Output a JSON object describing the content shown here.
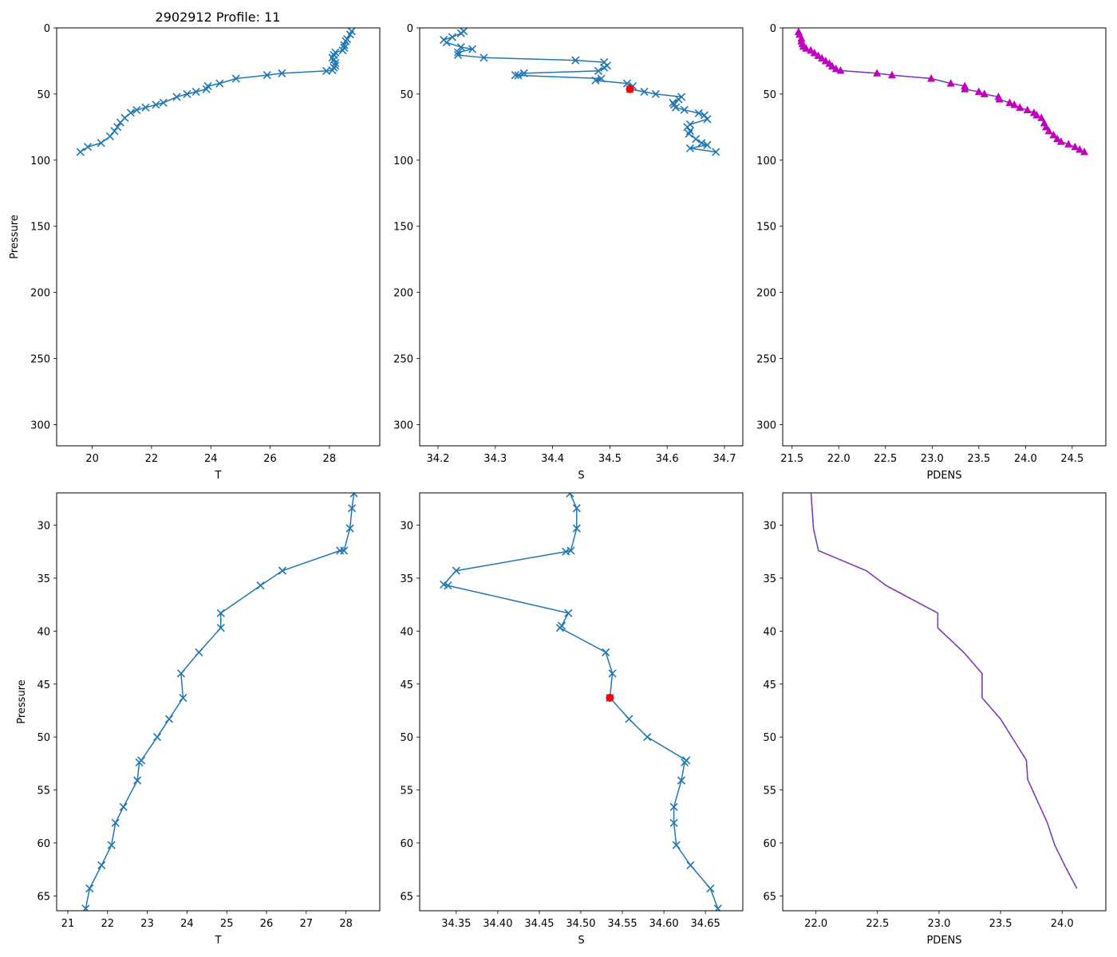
{
  "figure_title": "2902912 Profile: 11",
  "colors": {
    "line": "#1f77b4",
    "highlight": "#ff0000",
    "pdens": "#bf00bf",
    "pdens_dash": "#1f77b4"
  },
  "chart_data": [
    {
      "id": "top-T",
      "type": "line",
      "marker": "x",
      "title": "2902912 Profile: 11",
      "xlabel": "T",
      "ylabel": "Pressure",
      "y_inverted": true,
      "xlim": [
        18.8,
        29.7
      ],
      "ylim": [
        0,
        316
      ],
      "xticks": [
        20,
        22,
        24,
        26,
        28
      ],
      "yticks": [
        0,
        50,
        100,
        150,
        200,
        250,
        300
      ],
      "x": [
        28.75,
        28.7,
        28.6,
        28.55,
        28.5,
        28.5,
        28.45,
        28.2,
        28.15,
        28.1,
        28.15,
        28.2,
        28.2,
        28.15,
        28.1,
        27.9,
        26.4,
        25.9,
        24.85,
        24.3,
        23.9,
        23.85,
        23.5,
        23.2,
        22.85,
        22.4,
        22.15,
        21.8,
        21.5,
        21.3,
        21.1,
        20.95,
        20.85,
        20.75,
        20.6,
        20.3,
        19.85,
        19.6
      ],
      "y": [
        2.5,
        5,
        8.5,
        10,
        13,
        15,
        17,
        18.5,
        20.5,
        22.5,
        24,
        26.5,
        28.5,
        30,
        32,
        32.5,
        34.3,
        35.7,
        38.3,
        42,
        44,
        46.3,
        48.3,
        50,
        52.2,
        56.6,
        58.1,
        60.2,
        62.1,
        64.2,
        68,
        71.5,
        75,
        78,
        82,
        87,
        90,
        93.8
      ],
      "highlight": null
    },
    {
      "id": "top-S",
      "type": "line",
      "marker": "x",
      "title": "",
      "xlabel": "S",
      "ylabel": "",
      "y_inverted": true,
      "xlim": [
        34.168,
        34.732
      ],
      "ylim": [
        0,
        316
      ],
      "xticks": [
        34.2,
        34.3,
        34.4,
        34.5,
        34.6,
        34.7
      ],
      "yticks": [
        0,
        50,
        100,
        150,
        200,
        250,
        300
      ],
      "x": [
        34.245,
        34.24,
        34.225,
        34.21,
        34.215,
        34.24,
        34.26,
        34.235,
        34.235,
        34.28,
        34.44,
        34.49,
        34.495,
        34.49,
        34.48,
        34.35,
        34.335,
        34.34,
        34.485,
        34.475,
        34.53,
        34.54,
        34.535,
        34.56,
        34.58,
        34.625,
        34.62,
        34.61,
        34.612,
        34.615,
        34.63,
        34.655,
        34.665,
        34.67,
        34.64,
        34.635,
        34.64,
        34.638,
        34.65,
        34.66,
        34.67,
        34.64,
        34.685
      ],
      "y": [
        2.5,
        4,
        7,
        9,
        11,
        14.5,
        16,
        18.5,
        20.5,
        22.5,
        24.5,
        26,
        28.5,
        30,
        32.5,
        34.3,
        35.7,
        35.9,
        38.3,
        39.7,
        42,
        44,
        46.3,
        48.3,
        50,
        52.2,
        54,
        56.6,
        58,
        60.2,
        62,
        64.5,
        66,
        69,
        73,
        75,
        78,
        80,
        84,
        87,
        88.5,
        91,
        93.8
      ],
      "highlight": {
        "x": 34.535,
        "y": 46.3
      }
    },
    {
      "id": "top-PDENS",
      "type": "line",
      "marker": "^",
      "title": "",
      "xlabel": "PDENS",
      "ylabel": "",
      "y_inverted": true,
      "xlim": [
        21.4,
        24.86
      ],
      "ylim": [
        0,
        316
      ],
      "xticks": [
        21.5,
        22.0,
        22.5,
        23.0,
        23.5,
        24.0,
        24.5
      ],
      "yticks": [
        0,
        50,
        100,
        150,
        200,
        250,
        300
      ],
      "x": [
        21.57,
        21.58,
        21.6,
        21.6,
        21.61,
        21.62,
        21.65,
        21.7,
        21.74,
        21.78,
        21.82,
        21.86,
        21.9,
        21.93,
        21.97,
        22.02,
        22.41,
        22.57,
        22.99,
        23.2,
        23.35,
        23.35,
        23.5,
        23.56,
        23.71,
        23.72,
        23.83,
        23.88,
        23.94,
        24.02,
        24.09,
        24.12,
        24.17,
        24.2,
        24.22,
        24.25,
        24.3,
        24.34,
        24.38,
        24.46,
        24.53,
        24.58,
        24.63
      ],
      "y": [
        3,
        5,
        8,
        10,
        12,
        14,
        15.5,
        17,
        19,
        21,
        23,
        25,
        27,
        29,
        31,
        32.3,
        34.3,
        35.7,
        38.3,
        42,
        44,
        46.3,
        48.3,
        50,
        52.2,
        54,
        56.6,
        58.1,
        60.2,
        62.1,
        64.2,
        66,
        68,
        72,
        75,
        78,
        81,
        84,
        86,
        88,
        90,
        92,
        93.8
      ],
      "highlight": null
    },
    {
      "id": "bottom-T",
      "type": "line",
      "marker": "x",
      "title": "",
      "xlabel": "T",
      "ylabel": "Pressure",
      "y_inverted": true,
      "xlim": [
        20.72,
        28.85
      ],
      "ylim": [
        26.95,
        66.4
      ],
      "xticks": [
        21,
        22,
        23,
        24,
        25,
        26,
        27,
        28
      ],
      "yticks": [
        30,
        35,
        40,
        45,
        50,
        55,
        60,
        65
      ],
      "x": [
        28.2,
        28.15,
        28.1,
        27.95,
        27.85,
        26.4,
        25.85,
        24.85,
        24.85,
        24.3,
        23.85,
        23.9,
        23.55,
        23.25,
        22.85,
        22.8,
        22.75,
        22.4,
        22.2,
        22.1,
        21.85,
        21.55,
        21.45
      ],
      "y": [
        27.0,
        28.4,
        30.3,
        32.4,
        32.4,
        34.3,
        35.7,
        38.3,
        39.7,
        42.0,
        44.0,
        46.3,
        48.3,
        50.0,
        52.2,
        52.4,
        54.1,
        56.6,
        58.1,
        60.2,
        62.1,
        64.3,
        66.2
      ],
      "highlight": null
    },
    {
      "id": "bottom-S",
      "type": "line",
      "marker": "x",
      "title": "",
      "xlabel": "S",
      "ylabel": "",
      "y_inverted": true,
      "xlim": [
        34.306,
        34.695
      ],
      "ylim": [
        26.95,
        66.4
      ],
      "xticks": [
        34.35,
        34.4,
        34.45,
        34.5,
        34.55,
        34.6,
        34.65
      ],
      "yticks": [
        30,
        35,
        40,
        45,
        50,
        55,
        60,
        65
      ],
      "x": [
        34.487,
        34.495,
        34.495,
        34.488,
        34.482,
        34.35,
        34.335,
        34.34,
        34.485,
        34.477,
        34.475,
        34.53,
        34.538,
        34.535,
        34.558,
        34.58,
        34.627,
        34.625,
        34.621,
        34.612,
        34.612,
        34.615,
        34.632,
        34.656,
        34.665
      ],
      "y": [
        27.0,
        28.4,
        30.3,
        32.4,
        32.5,
        34.3,
        35.6,
        35.7,
        38.3,
        39.5,
        39.7,
        42.0,
        44.0,
        46.3,
        48.3,
        50.0,
        52.2,
        52.4,
        54.1,
        56.6,
        58.1,
        60.2,
        62.1,
        64.3,
        66.2
      ],
      "highlight": {
        "x": 34.535,
        "y": 46.3
      }
    },
    {
      "id": "bottom-PDENS",
      "type": "line",
      "marker": "none",
      "title": "",
      "xlabel": "PDENS",
      "ylabel": "",
      "y_inverted": true,
      "xlim": [
        21.73,
        24.355
      ],
      "ylim": [
        26.95,
        66.4
      ],
      "xticks": [
        22.0,
        22.5,
        23.0,
        23.5,
        24.0
      ],
      "yticks": [
        30,
        35,
        40,
        45,
        50,
        55,
        60,
        65
      ],
      "x": [
        21.96,
        21.98,
        22.02,
        22.41,
        22.57,
        22.99,
        22.99,
        23.2,
        23.35,
        23.35,
        23.5,
        23.71,
        23.72,
        23.88,
        23.94,
        24.02,
        24.12
      ],
      "y": [
        27.0,
        30.3,
        32.4,
        34.3,
        35.7,
        38.3,
        39.7,
        42.0,
        44.0,
        46.3,
        48.3,
        52.2,
        54.0,
        58.1,
        60.2,
        62.1,
        64.3
      ],
      "highlight": null
    }
  ]
}
